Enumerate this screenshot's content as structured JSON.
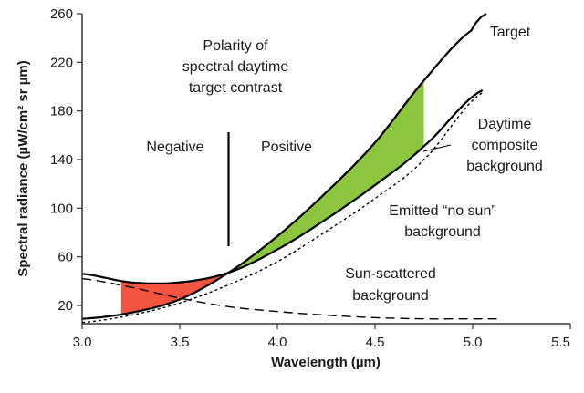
{
  "chart_data": {
    "type": "line",
    "xlabel": "Wavelength (µm)",
    "ylabel": "Spectral radiance (µW/cm² sr µm)",
    "xlim": [
      3.0,
      5.5
    ],
    "ylim": [
      5,
      260
    ],
    "x_ticks": [
      "3.0",
      "3.5",
      "4.0",
      "4.5",
      "5.0",
      "5.5"
    ],
    "x_tick_values": [
      3.0,
      3.5,
      4.0,
      4.5,
      5.0,
      5.5
    ],
    "y_ticks": [
      "20",
      "60",
      "100",
      "140",
      "180",
      "220",
      "260"
    ],
    "y_tick_values": [
      20,
      60,
      100,
      140,
      180,
      220,
      260
    ],
    "grid": false,
    "series": [
      {
        "name": "Target",
        "style": "solid",
        "color": "#000000",
        "x": [
          3.0,
          3.25,
          3.5,
          3.75,
          4.0,
          4.25,
          4.5,
          4.75,
          5.0,
          5.07
        ],
        "y": [
          9,
          14,
          25,
          47,
          77,
          113,
          154,
          205,
          247,
          260
        ]
      },
      {
        "name": "Daytime composite background",
        "style": "solid",
        "color": "#000000",
        "x": [
          3.0,
          3.25,
          3.5,
          3.75,
          4.0,
          4.25,
          4.5,
          4.75,
          5.05
        ],
        "y": [
          46,
          39,
          39,
          47,
          66,
          91,
          119,
          151,
          197
        ]
      },
      {
        "name": "Emitted “no sun” background",
        "style": "dotted",
        "color": "#000000",
        "x": [
          3.0,
          3.25,
          3.5,
          3.75,
          4.0,
          4.25,
          4.5,
          4.75,
          5.05
        ],
        "y": [
          6,
          12,
          22,
          37,
          56,
          81,
          108,
          140,
          195
        ]
      },
      {
        "name": "Sun-scattered background",
        "style": "dashed",
        "color": "#000000",
        "x": [
          3.0,
          3.25,
          3.5,
          3.75,
          4.0,
          4.25,
          4.5,
          4.75,
          5.0,
          5.15
        ],
        "y": [
          42,
          35,
          26,
          19,
          15,
          12,
          10,
          9,
          9,
          9
        ]
      }
    ],
    "shaded_regions": [
      {
        "label": "Negative",
        "color": "#f2543f",
        "x_from": 3.2,
        "x_to": 3.75
      },
      {
        "label": "Positive",
        "color": "#8cc63f",
        "x_from": 3.75,
        "x_to": 4.75
      }
    ],
    "annotations": {
      "polarity_title": [
        "Polarity of",
        "spectral daytime",
        "target contrast"
      ],
      "negative": "Negative",
      "positive": "Positive",
      "target": "Target",
      "daytime": [
        "Daytime",
        "composite",
        "background"
      ],
      "emitted": [
        "Emitted “no sun”",
        "background"
      ],
      "sun_scattered": [
        "Sun-scattered",
        "background"
      ]
    },
    "divider_x": 3.75
  }
}
